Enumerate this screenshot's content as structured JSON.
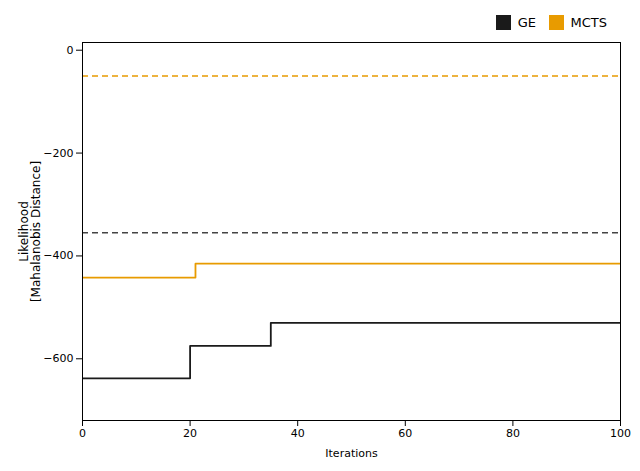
{
  "chart_data": {
    "type": "step",
    "xlabel": "Iterations",
    "ylabel": "Likelihood\n[Mahalanobis Distance]",
    "series": [
      {
        "name": "GE",
        "color": "#1a1a1a",
        "line_style": "solid",
        "x": [
          0,
          2,
          3,
          5,
          10,
          20,
          30,
          35,
          40,
          100
        ],
        "values": [
          -638,
          -638,
          -638,
          -638,
          -638,
          -575,
          -575,
          -530,
          -530,
          -530
        ]
      },
      {
        "name": "MCTS",
        "color": "#E89B00",
        "line_style": "solid",
        "x": [
          0,
          1,
          20,
          21,
          100
        ],
        "values": [
          -442,
          -442,
          -442,
          -415,
          -415
        ]
      }
    ],
    "hlines": [
      {
        "y": -355,
        "color": "#444444",
        "line_style": "dashed"
      },
      {
        "y": -50,
        "color": "#E89B00",
        "line_style": "dashed"
      }
    ],
    "xlim": [
      0,
      100
    ],
    "ylim": [
      -720,
      15
    ],
    "xticks": [
      0,
      20,
      40,
      60,
      80,
      100
    ],
    "yticks": [
      0,
      -200,
      -400,
      -600
    ],
    "legend": "upper right",
    "grid": false
  }
}
